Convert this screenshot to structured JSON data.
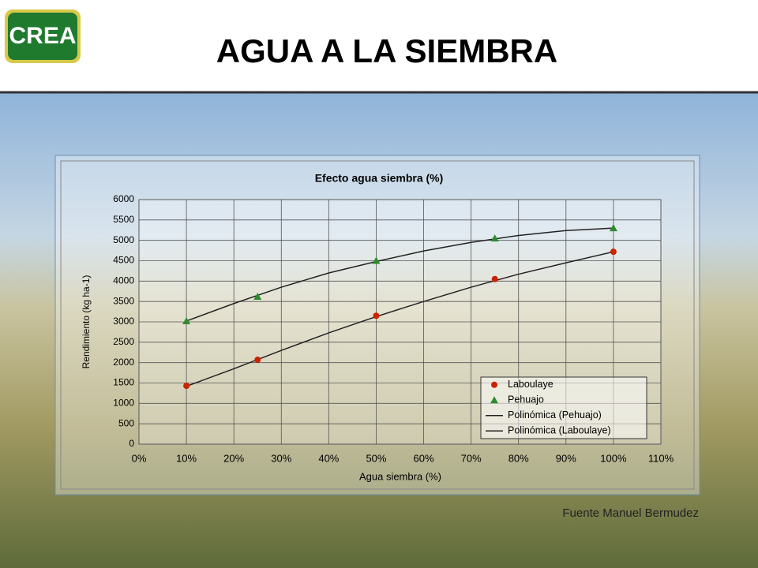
{
  "header": {
    "logo": "CREA",
    "title": "AGUA A LA SIEMBRA"
  },
  "chart_data": {
    "type": "scatter",
    "title": "Efecto agua siembra (%)",
    "x_label": "Agua siembra (%)",
    "y_label": "Rendimiento (kg ha-1)",
    "xlim": [
      0,
      110
    ],
    "xticks": [
      {
        "value": 0,
        "label": "0%"
      },
      {
        "value": 10,
        "label": "10%"
      },
      {
        "value": 20,
        "label": "20%"
      },
      {
        "value": 30,
        "label": "30%"
      },
      {
        "value": 40,
        "label": "40%"
      },
      {
        "value": 50,
        "label": "50%"
      },
      {
        "value": 60,
        "label": "60%"
      },
      {
        "value": 70,
        "label": "70%"
      },
      {
        "value": 80,
        "label": "80%"
      },
      {
        "value": 90,
        "label": "90%"
      },
      {
        "value": 100,
        "label": "100%"
      },
      {
        "value": 110,
        "label": "110%"
      }
    ],
    "ylim": [
      0,
      6000
    ],
    "yticks": [
      0,
      500,
      1000,
      1500,
      2000,
      2500,
      3000,
      3500,
      4000,
      4500,
      5000,
      5500,
      6000
    ],
    "grid": true,
    "legend": "lower right",
    "series": [
      {
        "name": "Laboulaye",
        "color": "#cc2200",
        "marker": "circle",
        "x": [
          10,
          25,
          50,
          75,
          100
        ],
        "values": [
          1430,
          2070,
          3150,
          4050,
          4720
        ]
      },
      {
        "name": "Pehuajo",
        "color": "#2e8b2e",
        "marker": "triangle",
        "x": [
          10,
          25,
          50,
          75,
          100
        ],
        "values": [
          3020,
          3620,
          4500,
          5050,
          5300
        ]
      },
      {
        "name": "Polinómica (Pehuajo)",
        "color": "#222222",
        "marker": "none",
        "x": [
          10,
          20,
          30,
          40,
          50,
          60,
          70,
          80,
          90,
          100
        ],
        "values": [
          3020,
          3450,
          3850,
          4200,
          4480,
          4740,
          4950,
          5120,
          5240,
          5300
        ]
      },
      {
        "name": "Polinómica (Laboulaye)",
        "color": "#222222",
        "marker": "none",
        "x": [
          10,
          20,
          30,
          40,
          50,
          60,
          70,
          80,
          90,
          100
        ],
        "values": [
          1420,
          1850,
          2300,
          2730,
          3130,
          3500,
          3850,
          4170,
          4450,
          4720
        ]
      }
    ]
  },
  "footer": {
    "source": "Fuente Manuel Bermudez"
  }
}
